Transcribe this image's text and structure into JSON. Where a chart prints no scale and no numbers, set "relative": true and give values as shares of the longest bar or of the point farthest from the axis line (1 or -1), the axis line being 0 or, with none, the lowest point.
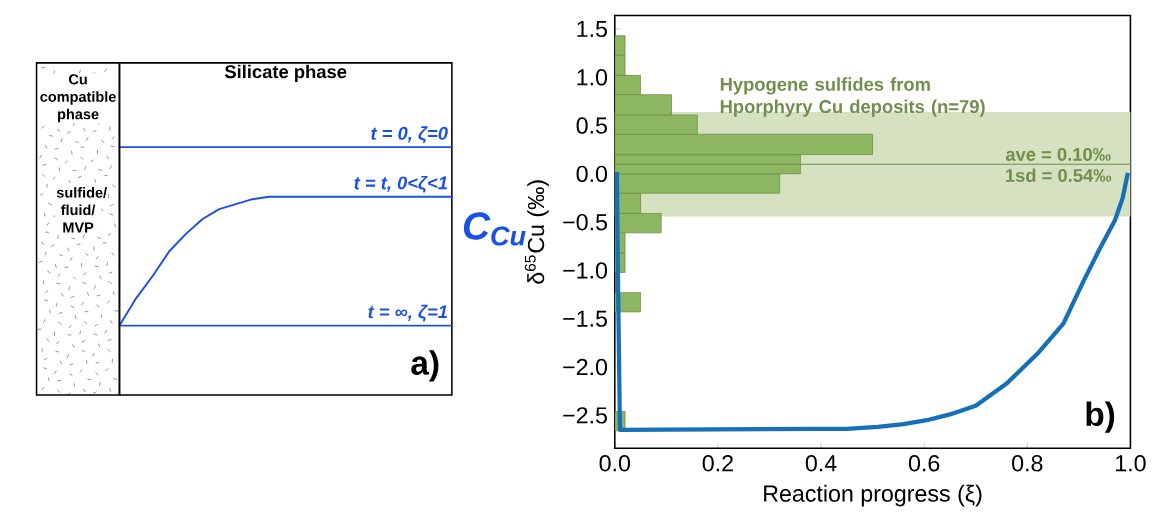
{
  "chart_data": [
    {
      "type": "line",
      "relative": true,
      "title": "Silicate phase",
      "ylabel": "C$_{Cu}$",
      "categories": [
        null,
        null,
        null,
        null,
        null,
        null,
        null,
        null,
        null,
        null,
        null,
        null,
        null,
        null,
        null,
        null,
        null,
        null,
        null,
        null,
        null
      ],
      "series": [
        {
          "name": "t = 0, ζ=0",
          "color": "#1a50e6",
          "values": [
            1,
            1,
            1,
            1,
            1,
            1,
            1,
            1,
            1,
            1,
            1,
            1,
            1,
            1,
            1,
            1,
            1,
            1,
            1,
            1,
            1
          ]
        },
        {
          "name": "t = t, 0<ζ<1",
          "color": "#1a50e6",
          "values": [
            0.28,
            0.39,
            0.48,
            0.58,
            0.65,
            0.71,
            0.75,
            0.77,
            0.79,
            0.8,
            0.8,
            0.8,
            0.8,
            0.8,
            0.8,
            0.8,
            0.8,
            0.8,
            0.8,
            0.8,
            0.8
          ]
        },
        {
          "name": "t = ∞, ζ=1",
          "color": "#1a50e6",
          "values": [
            0.28,
            0.28,
            0.28,
            0.28,
            0.28,
            0.28,
            0.28,
            0.28,
            0.28,
            0.28,
            0.28,
            0.28,
            0.28,
            0.28,
            0.28,
            0.28,
            0.28,
            0.28,
            0.28,
            0.28,
            0.28
          ]
        }
      ],
      "annotations": [
        "Cu compatible phase",
        "sulfide/ fluid/ MVP",
        "a)"
      ]
    },
    {
      "type": "histogram",
      "orientation": "horizontal",
      "xlabel": "Reaction progress (ξ)",
      "ylabel": "δ$^{65}$Cu (‰)",
      "xlim": [
        0,
        1
      ],
      "xticks": [
        {
          "value": 0,
          "label": "0.0"
        },
        0.2,
        0.4,
        0.6,
        0.8,
        {
          "value": 1,
          "label": "1.0"
        }
      ],
      "ylim": [
        -2.84,
        1.64
      ],
      "yticks": [
        {
          "value": -2.5,
          "label": "−2.5"
        },
        {
          "value": -2,
          "label": "−2.0"
        },
        {
          "value": -1.5,
          "label": "−1.5"
        },
        {
          "value": -1,
          "label": "−1.0"
        },
        {
          "value": -0.5,
          "label": "−0.5"
        },
        {
          "value": 0,
          "label": "0.0"
        },
        0.5,
        {
          "value": 1,
          "label": "1.0"
        },
        1.5
      ],
      "series": [
        {
          "type": "histogram",
          "color": "#8cb660",
          "bins": [
            -2.66,
            -2.46,
            -1.43,
            -1.23,
            -1.02,
            -0.82,
            -0.61,
            -0.41,
            -0.2,
            0,
            0.2,
            0.41,
            0.61,
            0.82,
            1.02,
            1.23,
            1.43
          ],
          "values": [
            0.02,
            0,
            0.05,
            0,
            0.02,
            0.02,
            0.09,
            0.05,
            0.32,
            0.36,
            0.5,
            0.16,
            0.11,
            0.05,
            0.02,
            0.02
          ]
        },
        {
          "type": "line",
          "color": "#1570b8",
          "values": [
            0.004,
            0.006,
            0.01,
            0.4,
            0.45,
            0.51,
            0.56,
            0.605,
            0.65,
            0.7,
            0.76,
            0.82,
            0.87,
            0.91,
            0.94,
            0.97,
            0.985,
            0.995
          ],
          "x": [
            0.02,
            -1.0,
            -2.65,
            -2.64,
            -2.64,
            -2.62,
            -2.59,
            -2.55,
            -2.49,
            -2.4,
            -2.17,
            -1.86,
            -1.55,
            -1.1,
            -0.78,
            -0.48,
            -0.25,
            0.01
          ]
        }
      ],
      "bands": [
        {
          "axis": "y",
          "from": -0.44,
          "to": 0.64,
          "label": "1sd = 0.54‰",
          "color": "#d5e1c0"
        }
      ],
      "ref_lines": [
        {
          "axis": "y",
          "value": 0.1,
          "label": "ave = 0.10‰",
          "color": "#6f8f4a"
        }
      ],
      "annotations": [
        "Hypogene sulfides from Hporphyry Cu deposits (n=79)",
        "b)"
      ]
    }
  ]
}
